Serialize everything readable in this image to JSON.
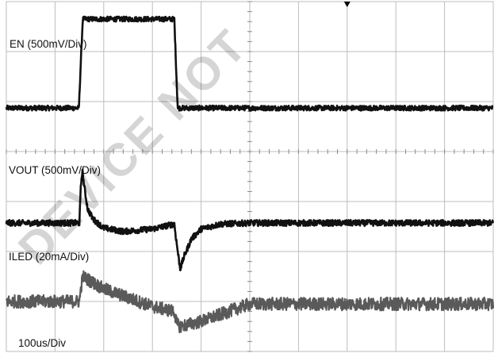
{
  "chart_data": {
    "type": "line",
    "title": "",
    "x_label": "100us/Div",
    "x_unit_per_div": 100,
    "x_unit": "us",
    "x_divisions": 10,
    "y_divisions": 7,
    "grid": true,
    "trigger_marker": "top, at 7th vertical division line",
    "watermark": "DEVICE NOT",
    "colors": {
      "background": "#ffffff",
      "grid": "#bdbdbd",
      "trace_dark": "#111111",
      "trace_grey": "#5a5a5a"
    },
    "series": [
      {
        "name": "EN (500mV/Div)",
        "color": "#111111",
        "x_us": [
          0,
          149,
          153,
          157,
          345,
          349,
          352,
          500
        ],
        "y_div": [
          -2.13,
          -2.13,
          -1.2,
          -0.35,
          -0.35,
          -1.4,
          -2.13,
          -2.13
        ],
        "noise": 0.05
      },
      {
        "name": "VOUT (500mV/Div)",
        "color": "#111111",
        "x_us": [
          0,
          150,
          153,
          156,
          160,
          167,
          178,
          200,
          240,
          300,
          345,
          350,
          357,
          365,
          380,
          400,
          440,
          500
        ],
        "y_div": [
          -4.43,
          -4.43,
          -3.7,
          -3.38,
          -3.7,
          -4.15,
          -4.35,
          -4.53,
          -4.6,
          -4.55,
          -4.45,
          -4.85,
          -5.35,
          -5.1,
          -4.75,
          -4.55,
          -4.45,
          -4.43
        ],
        "noise": 0.06
      },
      {
        "name": "ILED (20mA/Div)",
        "color": "#5a5a5a",
        "x_us": [
          0,
          150,
          153,
          157,
          200,
          300,
          345,
          350,
          357,
          400,
          500
        ],
        "y_div": [
          -6.0,
          -6.0,
          -5.75,
          -5.5,
          -5.75,
          -6.1,
          -6.2,
          -6.45,
          -6.5,
          -6.4,
          -6.05
        ],
        "noise": 0.13
      }
    ],
    "labels": [
      {
        "text": "EN (500mV/Div)",
        "series": 0
      },
      {
        "text": "VOUT (500mV/Div)",
        "series": 1
      },
      {
        "text": "ILED (20mA/Div)",
        "series": 2
      },
      {
        "text": "100us/Div",
        "series": null
      }
    ]
  }
}
